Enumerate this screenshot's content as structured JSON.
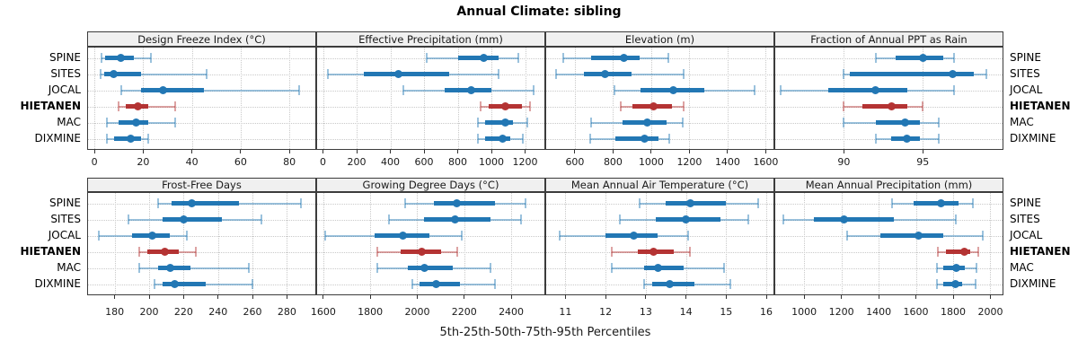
{
  "title": "Annual Climate: sibling",
  "footer": "5th-25th-50th-75th-95th Percentiles",
  "stations": [
    "SPINE",
    "SITES",
    "JOCAL",
    "HIETANEN",
    "MAC",
    "DIXMINE"
  ],
  "highlight_station": "HIETANEN",
  "percentile_labels": [
    "5th",
    "25th",
    "50th",
    "75th",
    "95th"
  ],
  "colors": {
    "series": "#2277b4",
    "series_light": "rgba(34,119,180,0.45)",
    "highlight": "#b43333",
    "highlight_light": "rgba(180,51,51,0.45)",
    "strip_bg": "#f0f0f0",
    "panel_border": "#3c3c3c",
    "grid": "#c9c9c9"
  },
  "chart_data": [
    {
      "type": "percentile-dotplot",
      "title": "Design Freeze Index (°C)",
      "row": 0,
      "col": 0,
      "xlim": [
        -3,
        91
      ],
      "ticks": [
        0,
        20,
        40,
        60,
        80
      ],
      "series": [
        {
          "name": "SPINE",
          "values": [
            3,
            4.5,
            11,
            16,
            23
          ]
        },
        {
          "name": "SITES",
          "values": [
            2.5,
            4,
            8,
            19,
            46
          ]
        },
        {
          "name": "JOCAL",
          "values": [
            11,
            19,
            28,
            45,
            84
          ]
        },
        {
          "name": "HIETANEN",
          "values": [
            10,
            13,
            18,
            22,
            33
          ]
        },
        {
          "name": "MAC",
          "values": [
            5,
            10,
            17,
            22,
            33
          ]
        },
        {
          "name": "DIXMINE",
          "values": [
            5,
            8,
            15,
            19,
            22
          ]
        }
      ]
    },
    {
      "type": "percentile-dotplot",
      "title": "Effective Precipitation (mm)",
      "row": 0,
      "col": 1,
      "xlim": [
        -40,
        1320
      ],
      "ticks": [
        0,
        200,
        400,
        600,
        800,
        1000,
        1200
      ],
      "series": [
        {
          "name": "SPINE",
          "values": [
            615,
            800,
            955,
            1040,
            1160
          ]
        },
        {
          "name": "SITES",
          "values": [
            30,
            245,
            450,
            750,
            1045
          ]
        },
        {
          "name": "JOCAL",
          "values": [
            475,
            720,
            880,
            1000,
            1250
          ]
        },
        {
          "name": "HIETANEN",
          "values": [
            935,
            985,
            1080,
            1180,
            1230
          ]
        },
        {
          "name": "MAC",
          "values": [
            920,
            965,
            1080,
            1130,
            1215
          ]
        },
        {
          "name": "DIXMINE",
          "values": [
            920,
            965,
            1065,
            1110,
            1185
          ]
        }
      ]
    },
    {
      "type": "percentile-dotplot",
      "title": "Elevation (m)",
      "row": 0,
      "col": 2,
      "xlim": [
        445,
        1645
      ],
      "ticks": [
        600,
        800,
        1000,
        1200,
        1400,
        1600
      ],
      "series": [
        {
          "name": "SPINE",
          "values": [
            540,
            685,
            855,
            940,
            1090
          ]
        },
        {
          "name": "SITES",
          "values": [
            500,
            645,
            760,
            895,
            1170
          ]
        },
        {
          "name": "JOCAL",
          "values": [
            805,
            945,
            1115,
            1280,
            1540
          ]
        },
        {
          "name": "HIETANEN",
          "values": [
            840,
            900,
            1010,
            1110,
            1170
          ]
        },
        {
          "name": "MAC",
          "values": [
            685,
            850,
            980,
            1080,
            1165
          ]
        },
        {
          "name": "DIXMINE",
          "values": [
            680,
            810,
            965,
            1040,
            1095
          ]
        }
      ]
    },
    {
      "type": "percentile-dotplot",
      "title": "Fraction of Annual PPT as Rain",
      "row": 0,
      "col": 3,
      "xlim": [
        85.6,
        100.1
      ],
      "ticks": [
        90,
        95
      ],
      "series": [
        {
          "name": "SPINE",
          "values": [
            92,
            93.3,
            95,
            96.3,
            97
          ]
        },
        {
          "name": "SITES",
          "values": [
            90,
            90.4,
            96.9,
            98.2,
            99
          ]
        },
        {
          "name": "JOCAL",
          "values": [
            86,
            89,
            92,
            94,
            97
          ]
        },
        {
          "name": "HIETANEN",
          "values": [
            90,
            91.2,
            93,
            94,
            95
          ]
        },
        {
          "name": "MAC",
          "values": [
            90,
            92,
            93.9,
            94.8,
            96
          ]
        },
        {
          "name": "DIXMINE",
          "values": [
            92,
            93,
            94,
            94.8,
            96
          ]
        }
      ]
    },
    {
      "type": "percentile-dotplot",
      "title": "Frost-Free Days",
      "row": 1,
      "col": 0,
      "xlim": [
        164,
        297
      ],
      "ticks": [
        180,
        200,
        220,
        240,
        260,
        280
      ],
      "series": [
        {
          "name": "SPINE",
          "values": [
            205,
            213,
            225,
            252,
            288
          ]
        },
        {
          "name": "SITES",
          "values": [
            188,
            208,
            220,
            242,
            265
          ]
        },
        {
          "name": "JOCAL",
          "values": [
            171,
            190,
            202,
            212,
            222
          ]
        },
        {
          "name": "HIETANEN",
          "values": [
            194,
            199,
            209,
            217,
            227
          ]
        },
        {
          "name": "MAC",
          "values": [
            194,
            205,
            212,
            224,
            258
          ]
        },
        {
          "name": "DIXMINE",
          "values": [
            203,
            208,
            215,
            233,
            260
          ]
        }
      ]
    },
    {
      "type": "percentile-dotplot",
      "title": "Growing Degree Days (°C)",
      "row": 1,
      "col": 1,
      "xlim": [
        1570,
        2545
      ],
      "ticks": [
        1600,
        1800,
        2000,
        2200,
        2400
      ],
      "series": [
        {
          "name": "SPINE",
          "values": [
            1950,
            2070,
            2170,
            2330,
            2460
          ]
        },
        {
          "name": "SITES",
          "values": [
            1880,
            2030,
            2160,
            2310,
            2440
          ]
        },
        {
          "name": "JOCAL",
          "values": [
            1610,
            1820,
            1940,
            2050,
            2190
          ]
        },
        {
          "name": "HIETANEN",
          "values": [
            1830,
            1930,
            2020,
            2100,
            2170
          ]
        },
        {
          "name": "MAC",
          "values": [
            1830,
            1960,
            2030,
            2150,
            2310
          ]
        },
        {
          "name": "DIXMINE",
          "values": [
            1980,
            2010,
            2080,
            2180,
            2330
          ]
        }
      ]
    },
    {
      "type": "percentile-dotplot",
      "title": "Mean Annual Air Temperature (°C)",
      "row": 1,
      "col": 2,
      "xlim": [
        10.5,
        16.2
      ],
      "ticks": [
        11,
        12,
        13,
        14,
        15,
        16
      ],
      "series": [
        {
          "name": "SPINE",
          "values": [
            12.85,
            13.5,
            14.1,
            15.0,
            15.8
          ]
        },
        {
          "name": "SITES",
          "values": [
            12.35,
            13.25,
            14.0,
            14.85,
            15.55
          ]
        },
        {
          "name": "JOCAL",
          "values": [
            10.85,
            12.0,
            12.7,
            13.3,
            14.05
          ]
        },
        {
          "name": "HIETANEN",
          "values": [
            12.15,
            12.8,
            13.2,
            13.7,
            14.1
          ]
        },
        {
          "name": "MAC",
          "values": [
            12.15,
            12.95,
            13.3,
            13.95,
            14.95
          ]
        },
        {
          "name": "DIXMINE",
          "values": [
            12.95,
            13.15,
            13.6,
            14.2,
            15.1
          ]
        }
      ]
    },
    {
      "type": "percentile-dotplot",
      "title": "Mean Annual Precipitation (mm)",
      "row": 1,
      "col": 3,
      "xlim": [
        840,
        2070
      ],
      "ticks": [
        1000,
        1200,
        1400,
        1600,
        1800,
        2000
      ],
      "series": [
        {
          "name": "SPINE",
          "values": [
            1470,
            1590,
            1735,
            1830,
            1905
          ]
        },
        {
          "name": "SITES",
          "values": [
            890,
            1050,
            1215,
            1480,
            1815
          ]
        },
        {
          "name": "JOCAL",
          "values": [
            1230,
            1410,
            1615,
            1745,
            1960
          ]
        },
        {
          "name": "HIETANEN",
          "values": [
            1720,
            1760,
            1860,
            1890,
            1935
          ]
        },
        {
          "name": "MAC",
          "values": [
            1715,
            1745,
            1815,
            1865,
            1925
          ]
        },
        {
          "name": "DIXMINE",
          "values": [
            1715,
            1745,
            1810,
            1850,
            1920
          ]
        }
      ]
    }
  ]
}
